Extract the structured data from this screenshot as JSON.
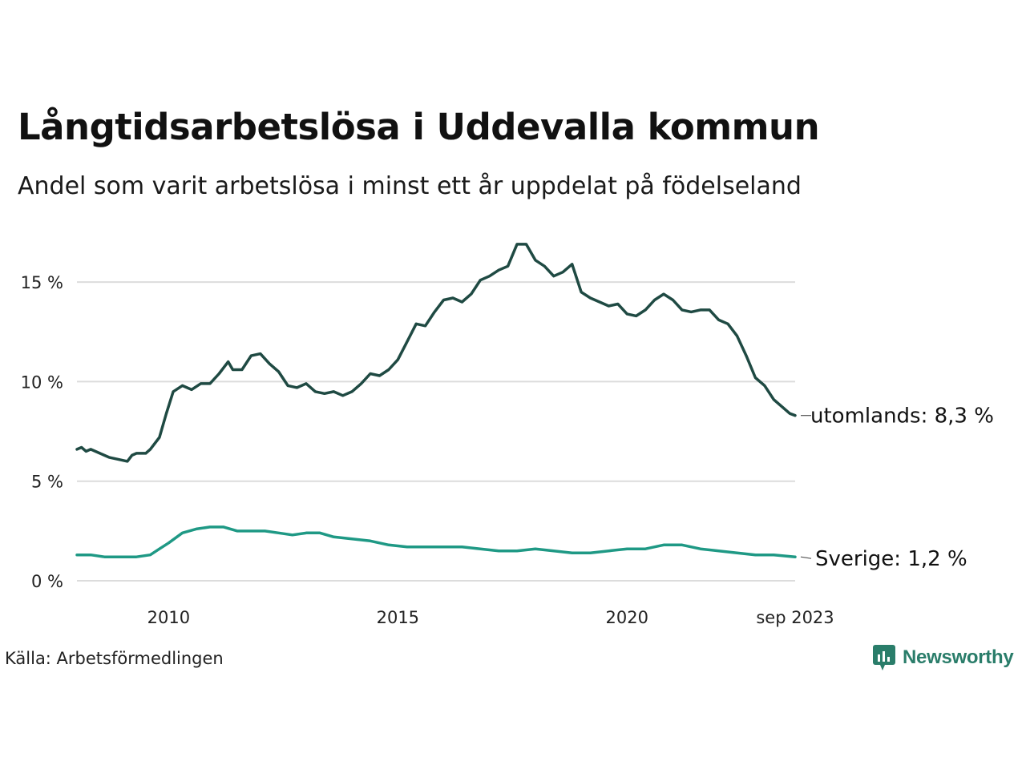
{
  "title": "Långtidsarbetslösa i Uddevalla kommun",
  "subtitle": "Andel som varit arbetslösa i minst ett år uppdelat på födelseland",
  "source": "Källa: Arbetsförmedlingen",
  "brand": {
    "name": "Newsworthy",
    "icon": "newsworthy-logo-icon",
    "color": "#2a7d6a"
  },
  "chart_data": {
    "type": "line",
    "title": "Långtidsarbetslösa i Uddevalla kommun",
    "xlabel": "",
    "ylabel": "",
    "ylim": [
      0,
      17.5
    ],
    "yticks": [
      0,
      5,
      10,
      15
    ],
    "ytick_labels": [
      "0 %",
      "5 %",
      "10 %",
      "15 %"
    ],
    "xlim": [
      2008.0,
      2023.667
    ],
    "xticks": [
      2010,
      2015,
      2020,
      2023.667
    ],
    "xtick_labels": [
      "2010",
      "2015",
      "2020",
      "sep 2023"
    ],
    "grid": true,
    "series": [
      {
        "name": "utomlands",
        "label": "utomlands: 8,3 %",
        "color": "#1f4a43",
        "x": [
          2008.0,
          2008.1,
          2008.2,
          2008.3,
          2008.5,
          2008.7,
          2008.9,
          2009.1,
          2009.2,
          2009.3,
          2009.5,
          2009.6,
          2009.8,
          2009.95,
          2010.1,
          2010.3,
          2010.5,
          2010.7,
          2010.9,
          2011.1,
          2011.3,
          2011.4,
          2011.6,
          2011.8,
          2012.0,
          2012.2,
          2012.4,
          2012.6,
          2012.8,
          2013.0,
          2013.2,
          2013.4,
          2013.6,
          2013.8,
          2014.0,
          2014.2,
          2014.4,
          2014.6,
          2014.8,
          2015.0,
          2015.2,
          2015.4,
          2015.6,
          2015.8,
          2016.0,
          2016.2,
          2016.4,
          2016.6,
          2016.8,
          2017.0,
          2017.2,
          2017.4,
          2017.6,
          2017.8,
          2018.0,
          2018.2,
          2018.4,
          2018.6,
          2018.8,
          2019.0,
          2019.2,
          2019.4,
          2019.6,
          2019.8,
          2020.0,
          2020.2,
          2020.4,
          2020.6,
          2020.8,
          2021.0,
          2021.2,
          2021.4,
          2021.6,
          2021.8,
          2022.0,
          2022.2,
          2022.4,
          2022.6,
          2022.8,
          2023.0,
          2023.2,
          2023.4,
          2023.55,
          2023.667
        ],
        "y": [
          6.6,
          6.7,
          6.5,
          6.6,
          6.4,
          6.2,
          6.1,
          6.0,
          6.3,
          6.4,
          6.4,
          6.6,
          7.2,
          8.4,
          9.5,
          9.8,
          9.6,
          9.9,
          9.9,
          10.4,
          11.0,
          10.6,
          10.6,
          11.3,
          11.4,
          10.9,
          10.5,
          9.8,
          9.7,
          9.9,
          9.5,
          9.4,
          9.5,
          9.3,
          9.5,
          9.9,
          10.4,
          10.3,
          10.6,
          11.1,
          12.0,
          12.9,
          12.8,
          13.5,
          14.1,
          14.2,
          14.0,
          14.4,
          15.1,
          15.3,
          15.6,
          15.8,
          16.9,
          16.9,
          16.1,
          15.8,
          15.3,
          15.5,
          15.9,
          14.5,
          14.2,
          14.0,
          13.8,
          13.9,
          13.4,
          13.3,
          13.6,
          14.1,
          14.4,
          14.1,
          13.6,
          13.5,
          13.6,
          13.6,
          13.1,
          12.9,
          12.3,
          11.3,
          10.2,
          9.8,
          9.1,
          8.7,
          8.4,
          8.3
        ]
      },
      {
        "name": "Sverige",
        "label": "Sverige: 1,2 %",
        "color": "#1f9985",
        "x": [
          2008.0,
          2008.3,
          2008.6,
          2009.0,
          2009.3,
          2009.6,
          2009.8,
          2010.0,
          2010.3,
          2010.6,
          2010.9,
          2011.2,
          2011.5,
          2011.8,
          2012.1,
          2012.4,
          2012.7,
          2013.0,
          2013.3,
          2013.6,
          2014.0,
          2014.4,
          2014.8,
          2015.2,
          2015.6,
          2016.0,
          2016.4,
          2016.8,
          2017.2,
          2017.6,
          2018.0,
          2018.4,
          2018.8,
          2019.2,
          2019.6,
          2020.0,
          2020.4,
          2020.8,
          2021.2,
          2021.6,
          2022.0,
          2022.4,
          2022.8,
          2023.2,
          2023.667
        ],
        "y": [
          1.3,
          1.3,
          1.2,
          1.2,
          1.2,
          1.3,
          1.6,
          1.9,
          2.4,
          2.6,
          2.7,
          2.7,
          2.5,
          2.5,
          2.5,
          2.4,
          2.3,
          2.4,
          2.4,
          2.2,
          2.1,
          2.0,
          1.8,
          1.7,
          1.7,
          1.7,
          1.7,
          1.6,
          1.5,
          1.5,
          1.6,
          1.5,
          1.4,
          1.4,
          1.5,
          1.6,
          1.6,
          1.8,
          1.8,
          1.6,
          1.5,
          1.4,
          1.3,
          1.3,
          1.2
        ]
      }
    ]
  }
}
